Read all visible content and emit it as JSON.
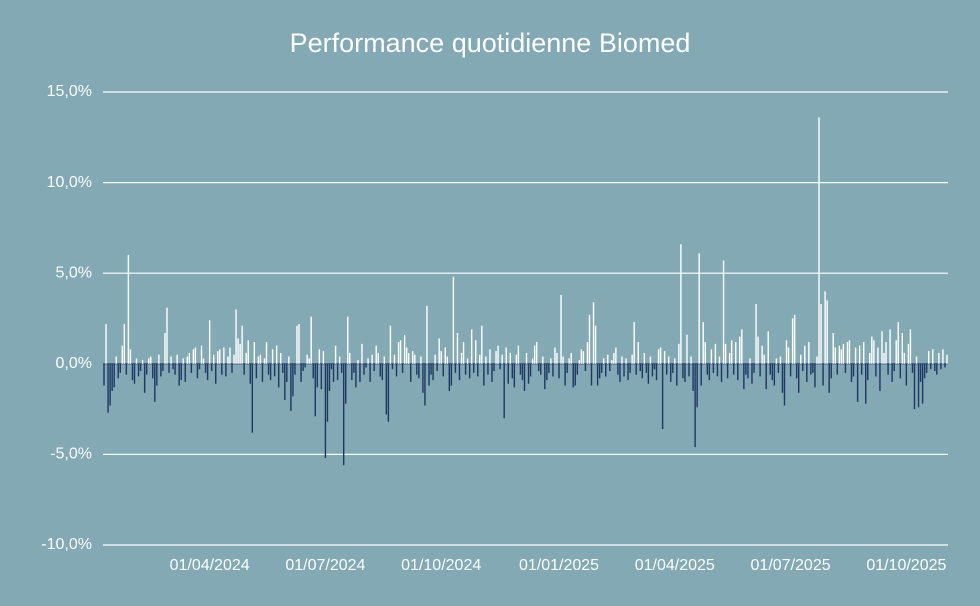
{
  "chart_data": {
    "type": "bar",
    "title": "Performance quotidienne Biomed",
    "categories": [
      null,
      null,
      null,
      null,
      null,
      null,
      null,
      null,
      null,
      null,
      null,
      null,
      null,
      null,
      null,
      null,
      null,
      null,
      null,
      null,
      null,
      null,
      null,
      null,
      null,
      null,
      null,
      null,
      null,
      null,
      null,
      null,
      null,
      null,
      null,
      null,
      null,
      null,
      null,
      null,
      null,
      null,
      null,
      null,
      null,
      null,
      null,
      null,
      null,
      null,
      null,
      null,
      "01/04/2024",
      null,
      null,
      null,
      null,
      null,
      null,
      null,
      null,
      null,
      null,
      null,
      null,
      null,
      null,
      null,
      null,
      null,
      null,
      null,
      null,
      null,
      null,
      null,
      null,
      null,
      null,
      null,
      null,
      null,
      null,
      null,
      null,
      null,
      null,
      null,
      null,
      null,
      null,
      null,
      null,
      null,
      null,
      null,
      null,
      null,
      null,
      null,
      null,
      null,
      null,
      null,
      null,
      null,
      null,
      null,
      null,
      "01/07/2024",
      null,
      null,
      null,
      null,
      null,
      null,
      null,
      null,
      null,
      null,
      null,
      null,
      null,
      null,
      null,
      null,
      null,
      null,
      null,
      null,
      null,
      null,
      null,
      null,
      null,
      null,
      null,
      null,
      null,
      null,
      null,
      null,
      null,
      null,
      null,
      null,
      null,
      null,
      null,
      null,
      null,
      null,
      null,
      null,
      null,
      null,
      null,
      null,
      null,
      null,
      null,
      null,
      null,
      null,
      null,
      null,
      "01/10/2024",
      null,
      null,
      null,
      null,
      null,
      null,
      null,
      null,
      null,
      null,
      null,
      null,
      null,
      null,
      null,
      null,
      null,
      null,
      null,
      null,
      null,
      null,
      null,
      null,
      null,
      null,
      null,
      null,
      null,
      null,
      null,
      null,
      null,
      null,
      null,
      null,
      null,
      null,
      null,
      null,
      null,
      null,
      null,
      null,
      null,
      null,
      null,
      null,
      null,
      null,
      null,
      null,
      null,
      null,
      null,
      null,
      null,
      "01/01/2025",
      null,
      null,
      null,
      null,
      null,
      null,
      null,
      null,
      null,
      null,
      null,
      null,
      null,
      null,
      null,
      null,
      null,
      null,
      null,
      null,
      null,
      null,
      null,
      null,
      null,
      null,
      null,
      null,
      null,
      null,
      null,
      null,
      null,
      null,
      null,
      null,
      null,
      null,
      null,
      null,
      null,
      null,
      null,
      null,
      null,
      null,
      null,
      null,
      null,
      null,
      null,
      null,
      null,
      null,
      null,
      null,
      "01/04/2025",
      null,
      null,
      null,
      null,
      null,
      null,
      null,
      null,
      null,
      null,
      null,
      null,
      null,
      null,
      null,
      null,
      null,
      null,
      null,
      null,
      null,
      null,
      null,
      null,
      null,
      null,
      null,
      null,
      null,
      null,
      null,
      null,
      null,
      null,
      null,
      null,
      null,
      null,
      null,
      null,
      null,
      null,
      null,
      null,
      null,
      null,
      null,
      null,
      null,
      null,
      null,
      null,
      null,
      null,
      null,
      null,
      "01/07/2025",
      null,
      null,
      null,
      null,
      null,
      null,
      null,
      null,
      null,
      null,
      null,
      null,
      null,
      null,
      null,
      null,
      null,
      null,
      null,
      null,
      null,
      null,
      null,
      null,
      null,
      null,
      null,
      null,
      null,
      null,
      null,
      null,
      null,
      null,
      null,
      null,
      null,
      null,
      null,
      null,
      null,
      null,
      null,
      null,
      null,
      null,
      null,
      null,
      null,
      null,
      null,
      null,
      null,
      null,
      null,
      null,
      "01/10/2025",
      null,
      null,
      null,
      null,
      null,
      null,
      null,
      null,
      null,
      null,
      null,
      null,
      null,
      null,
      null,
      null,
      null,
      null,
      null,
      null
    ],
    "values": [
      -1.2,
      2.2,
      -2.7,
      -2.3,
      -1.5,
      -1.3,
      0.4,
      -0.8,
      -0.5,
      1.0,
      2.2,
      -0.6,
      6.0,
      0.8,
      -0.9,
      -1.1,
      0.3,
      -0.7,
      -0.4,
      0.2,
      -1.6,
      -0.6,
      0.3,
      0.4,
      -0.8,
      -2.1,
      -1.2,
      0.5,
      -0.7,
      -0.4,
      1.7,
      3.1,
      -0.5,
      0.4,
      -0.3,
      -0.6,
      0.5,
      -1.2,
      -0.9,
      0.3,
      -1.0,
      0.4,
      0.6,
      -0.5,
      0.8,
      0.9,
      -0.8,
      -0.3,
      1.0,
      0.3,
      -0.5,
      -0.9,
      2.4,
      -0.4,
      0.5,
      -1.1,
      0.7,
      0.8,
      -0.6,
      0.9,
      -0.7,
      0.4,
      0.9,
      -0.5,
      0.5,
      3.0,
      1.4,
      1.1,
      2.1,
      -0.6,
      0.6,
      1.3,
      -1.1,
      -3.8,
      1.2,
      -0.8,
      0.4,
      0.5,
      -1.0,
      0.3,
      1.2,
      -0.6,
      -0.9,
      0.8,
      -0.7,
      1.0,
      -1.3,
      0.6,
      -0.5,
      -2.0,
      -1.0,
      0.4,
      -2.6,
      -1.8,
      -0.6,
      2.1,
      2.2,
      -1.0,
      -0.4,
      -0.2,
      0.5,
      0.3,
      2.6,
      -0.8,
      -2.9,
      -1.3,
      0.8,
      -1.4,
      0.7,
      -5.2,
      -3.2,
      -1.5,
      -0.3,
      -1.0,
      1.0,
      -0.9,
      0.4,
      -0.5,
      -5.6,
      -2.2,
      2.6,
      0.6,
      -0.9,
      -0.5,
      -1.3,
      0.2,
      -1.0,
      1.1,
      -0.6,
      -0.2,
      0.3,
      -1.0,
      0.5,
      -0.4,
      1.0,
      0.6,
      -0.7,
      -0.9,
      0.4,
      -2.8,
      -3.2,
      2.1,
      -0.3,
      0.5,
      -0.7,
      1.2,
      1.3,
      -0.5,
      1.6,
      0.9,
      0.6,
      -1.0,
      0.7,
      0.5,
      -0.6,
      -0.8,
      0.4,
      -1.6,
      -2.3,
      3.2,
      -1.2,
      -0.6,
      -0.9,
      0.5,
      -0.4,
      1.4,
      0.7,
      -0.7,
      0.9,
      0.4,
      -1.5,
      -1.2,
      4.8,
      -0.5,
      1.7,
      -0.9,
      0.6,
      1.2,
      -0.6,
      0.3,
      -0.8,
      1.9,
      -0.5,
      1.3,
      -0.7,
      0.5,
      2.1,
      -1.2,
      0.4,
      -0.6,
      0.8,
      -1.0,
      -0.4,
      0.7,
      1.0,
      -0.3,
      0.5,
      -3.0,
      0.9,
      -1.1,
      0.6,
      -0.8,
      -1.3,
      0.5,
      1.0,
      -0.6,
      -0.9,
      -1.5,
      0.6,
      -1.1,
      -0.7,
      0.3,
      1.0,
      1.2,
      -0.4,
      -0.6,
      0.4,
      -1.4,
      -0.9,
      -0.5,
      0.3,
      -0.7,
      0.9,
      0.6,
      -0.8,
      3.8,
      0.4,
      -1.2,
      -0.5,
      0.3,
      0.6,
      -1.3,
      -1.2,
      -0.6,
      0.2,
      0.8,
      0.7,
      -0.4,
      1.2,
      2.7,
      -1.2,
      3.4,
      2.1,
      -1.2,
      -0.8,
      -0.5,
      0.3,
      -0.7,
      0.5,
      -0.4,
      0.2,
      0.6,
      0.9,
      -0.6,
      -1.0,
      0.4,
      -0.7,
      0.3,
      -0.9,
      -0.5,
      0.5,
      2.3,
      -0.6,
      1.2,
      -0.4,
      -0.8,
      0.6,
      -0.5,
      -1.1,
      0.4,
      -0.7,
      -0.3,
      -0.9,
      0.8,
      0.9,
      -3.6,
      0.7,
      -0.6,
      0.4,
      -1.0,
      -0.5,
      0.3,
      -1.2,
      1.1,
      6.6,
      -0.8,
      -1.0,
      1.6,
      -0.7,
      0.4,
      -1.5,
      -4.6,
      -2.4,
      6.1,
      -1.2,
      2.3,
      1.2,
      -0.6,
      -0.9,
      0.8,
      -0.5,
      1.1,
      -0.7,
      0.4,
      -1.0,
      5.7,
      1.1,
      -0.8,
      0.6,
      1.3,
      -0.6,
      1.2,
      -0.9,
      1.5,
      1.9,
      -1.4,
      -0.6,
      -0.8,
      0.3,
      -1.1,
      -0.5,
      3.3,
      1.5,
      -0.7,
      1.0,
      0.5,
      -1.4,
      1.8,
      -0.6,
      -0.9,
      -1.2,
      0.3,
      -0.5,
      0.4,
      -1.6,
      -2.3,
      1.3,
      0.9,
      -0.7,
      2.5,
      2.7,
      -0.8,
      -1.6,
      0.5,
      -0.4,
      1.0,
      -1.0,
      1.2,
      -0.6,
      -0.5,
      -1.3,
      0.4,
      13.6,
      3.3,
      -1.2,
      4.0,
      3.5,
      -1.6,
      -0.8,
      1.7,
      0.9,
      -0.6,
      1.0,
      0.8,
      1.1,
      -0.5,
      1.2,
      1.3,
      -1.0,
      -0.7,
      0.9,
      -2.1,
      1.0,
      -0.6,
      1.2,
      -2.2,
      -0.9,
      0.6,
      1.5,
      1.3,
      -0.7,
      0.9,
      -1.5,
      1.8,
      0.6,
      1.2,
      -0.6,
      1.9,
      -1.0,
      -0.4,
      1.3,
      2.3,
      -0.8,
      1.7,
      0.6,
      -1.2,
      1.1,
      1.9,
      -0.5,
      -2.5,
      0.4,
      -2.4,
      -1.0,
      -2.2,
      -0.8,
      -0.5,
      0.7,
      -0.3,
      0.8,
      -0.4,
      -0.6,
      0.6,
      -0.3,
      0.8,
      -0.2,
      0.5
    ],
    "positive_color": "#ffffff",
    "negative_color": "#1f3864",
    "ylim": [
      -10,
      15
    ],
    "yticks": [
      {
        "value": -10,
        "label": "-10,0%"
      },
      {
        "value": -5,
        "label": "-5,0%"
      },
      {
        "value": 0,
        "label": "0,0%"
      },
      {
        "value": 5,
        "label": "5,0%"
      },
      {
        "value": 10,
        "label": "10,0%"
      },
      {
        "value": 15,
        "label": "15,0%"
      }
    ],
    "grid": true
  }
}
